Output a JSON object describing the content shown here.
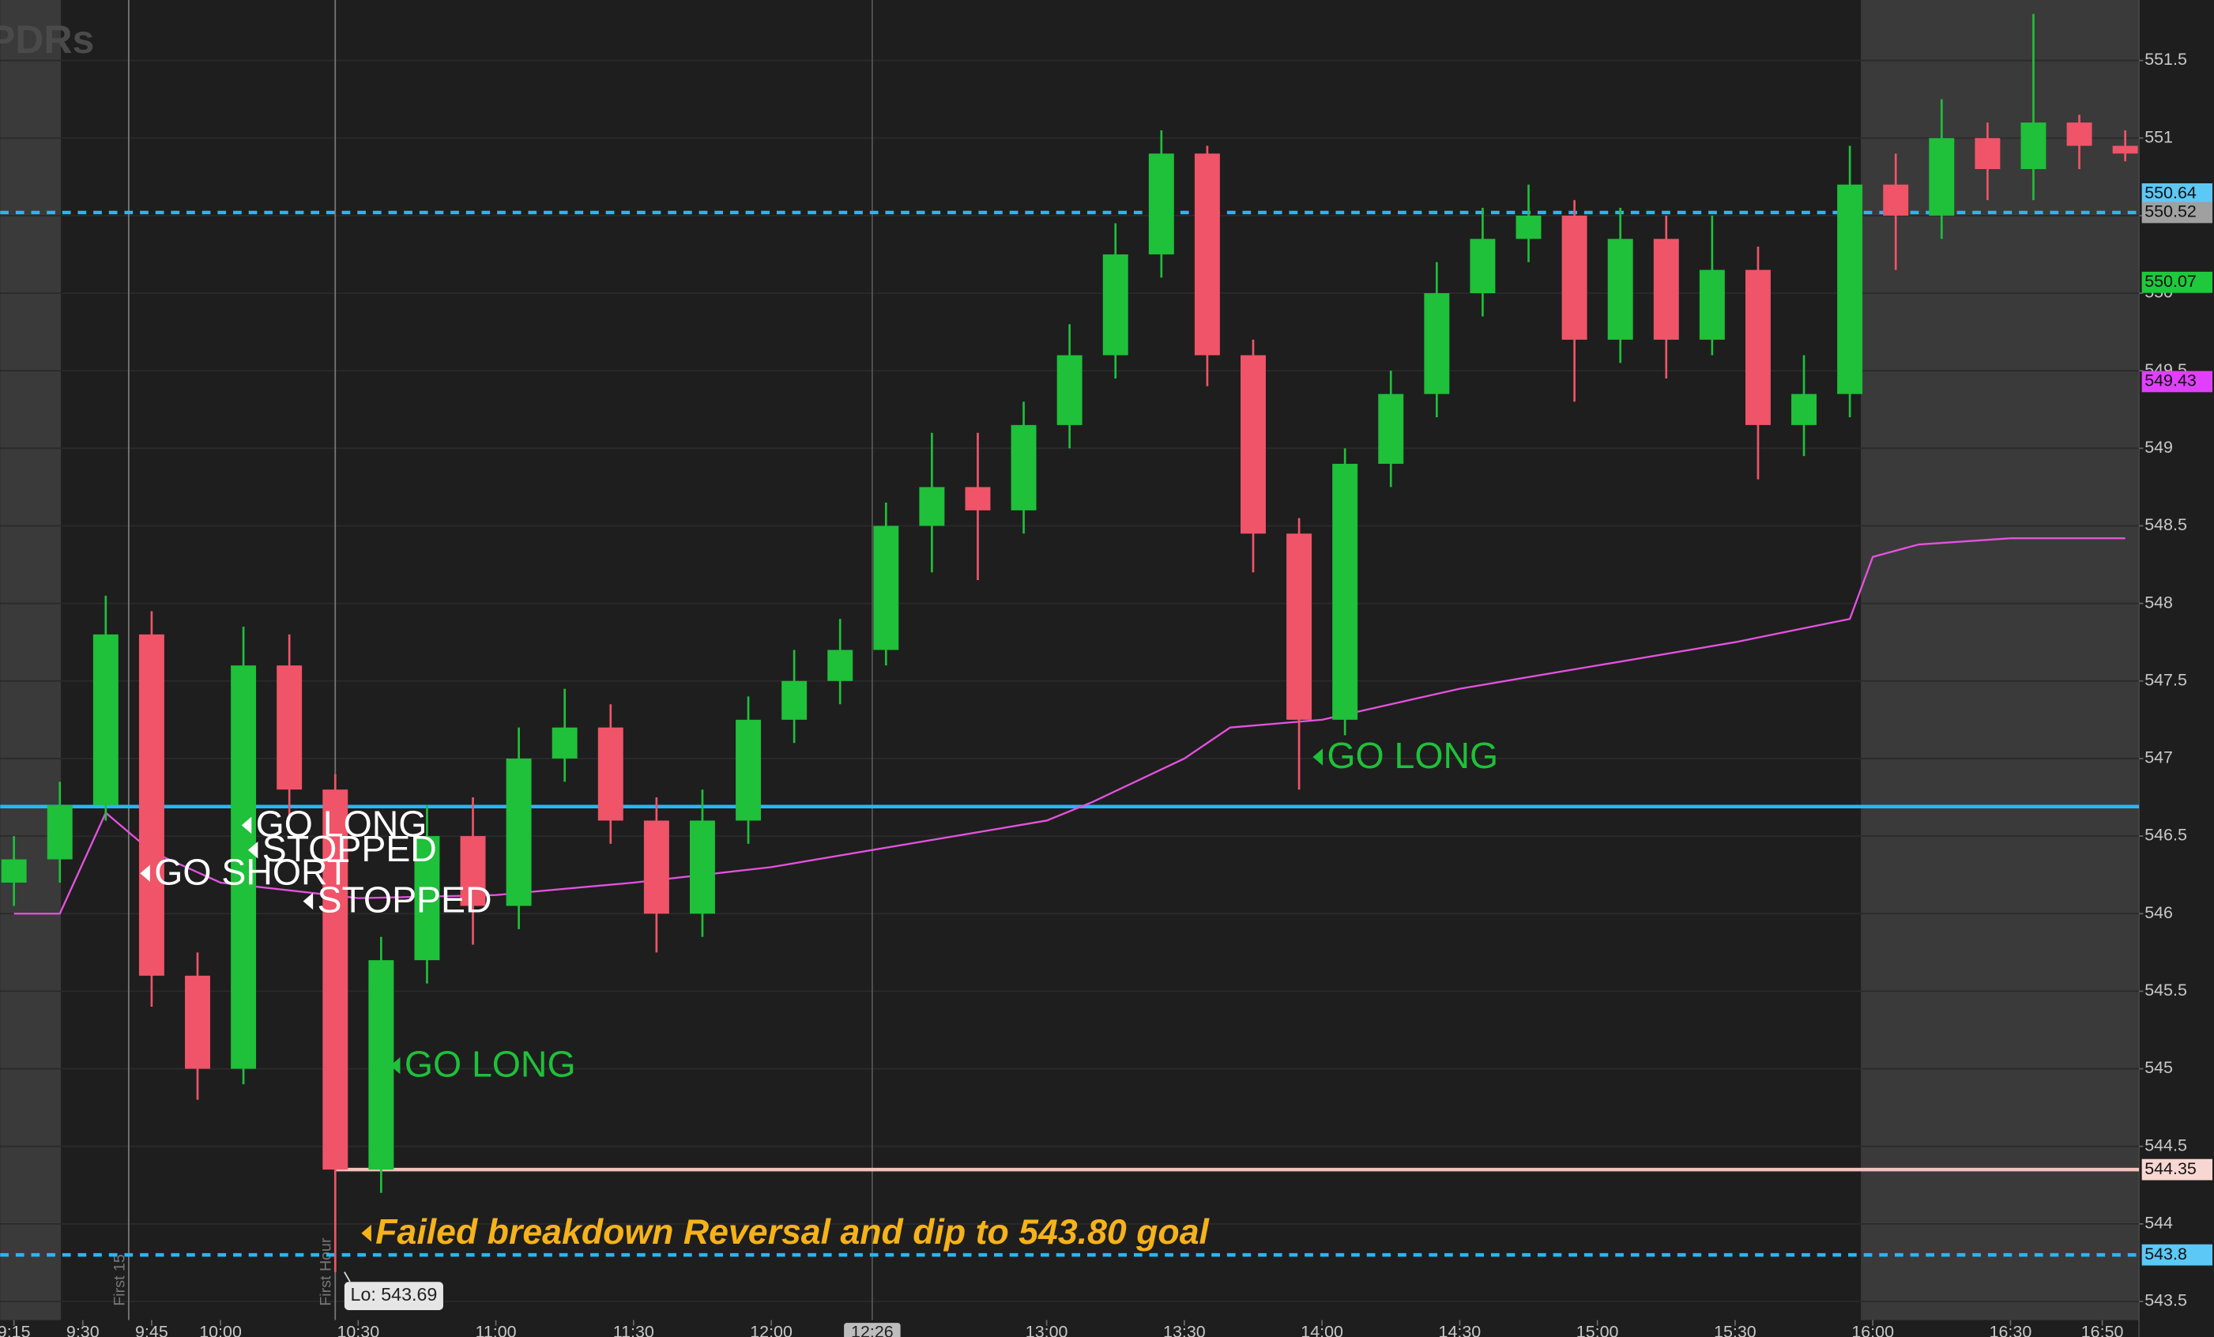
{
  "chart_data": {
    "type": "candlestick",
    "watermark": "PDRs",
    "xlim": [
      552,
      1018
    ],
    "ylim": [
      543.38,
      551.89
    ],
    "xticks": [
      {
        "value": 555,
        "label": "9:15"
      },
      {
        "value": 570,
        "label": "9:30"
      },
      {
        "value": 585,
        "label": "9:45"
      },
      {
        "value": 600,
        "label": "10:00"
      },
      {
        "value": 630,
        "label": "10:30"
      },
      {
        "value": 660,
        "label": "11:00"
      },
      {
        "value": 690,
        "label": "11:30"
      },
      {
        "value": 720,
        "label": "12:00"
      },
      {
        "value": 780,
        "label": "13:00"
      },
      {
        "value": 810,
        "label": "13:30"
      },
      {
        "value": 840,
        "label": "14:00"
      },
      {
        "value": 870,
        "label": "14:30"
      },
      {
        "value": 900,
        "label": "15:00"
      },
      {
        "value": 930,
        "label": "15:30"
      },
      {
        "value": 960,
        "label": "16:00"
      },
      {
        "value": 990,
        "label": "16:30"
      },
      {
        "value": 1010,
        "label": "16:50"
      }
    ],
    "yticks": [
      543.5,
      544,
      544.5,
      545,
      545.5,
      546,
      546.5,
      547,
      547.5,
      548,
      548.5,
      549,
      549.5,
      550,
      550.5,
      551,
      551.5
    ],
    "grid": true,
    "up_color": "#1fc03a",
    "down_color": "#f05468",
    "x": [
      555,
      565,
      575,
      585,
      595,
      605,
      615,
      625,
      635,
      645,
      655,
      665,
      675,
      685,
      695,
      705,
      715,
      725,
      735,
      745,
      755,
      765,
      775,
      785,
      795,
      805,
      815,
      825,
      835,
      845,
      855,
      865,
      875,
      885,
      895,
      905,
      915,
      925,
      935,
      945,
      955,
      965,
      975,
      985,
      995,
      1005,
      1015
    ],
    "open": [
      546.2,
      546.35,
      546.7,
      547.8,
      545.6,
      545.0,
      547.6,
      546.8,
      544.35,
      545.7,
      546.5,
      546.05,
      547.0,
      547.2,
      546.6,
      546.0,
      546.6,
      547.25,
      547.5,
      547.7,
      548.5,
      548.75,
      548.6,
      549.15,
      549.6,
      550.25,
      550.9,
      549.6,
      548.45,
      547.25,
      548.9,
      549.35,
      550.0,
      550.35,
      550.5,
      549.7,
      550.35,
      549.7,
      550.15,
      549.15,
      549.35,
      550.7,
      550.5,
      551.0,
      550.8,
      551.1,
      550.95
    ],
    "high": [
      546.5,
      546.85,
      548.05,
      547.95,
      545.75,
      547.85,
      547.8,
      546.9,
      545.85,
      546.7,
      546.75,
      547.2,
      547.45,
      547.35,
      546.75,
      546.8,
      547.4,
      547.7,
      547.9,
      548.65,
      549.1,
      549.1,
      549.3,
      549.8,
      550.45,
      551.05,
      550.95,
      549.7,
      548.55,
      549.0,
      549.5,
      550.2,
      550.55,
      550.7,
      550.6,
      550.55,
      550.5,
      550.5,
      550.3,
      549.6,
      550.95,
      550.9,
      551.25,
      551.1,
      551.8,
      551.15,
      551.05
    ],
    "low": [
      546.05,
      546.2,
      546.6,
      545.4,
      544.8,
      544.9,
      546.6,
      543.69,
      544.2,
      545.55,
      545.8,
      545.9,
      546.85,
      546.45,
      545.75,
      545.85,
      546.45,
      547.1,
      547.35,
      547.6,
      548.2,
      548.15,
      548.45,
      549.0,
      549.45,
      550.1,
      549.4,
      548.2,
      546.8,
      547.15,
      548.75,
      549.2,
      549.85,
      550.2,
      549.3,
      549.55,
      549.45,
      549.6,
      548.8,
      548.95,
      549.2,
      550.15,
      550.35,
      550.6,
      550.6,
      550.8,
      550.85
    ],
    "close": [
      546.35,
      546.7,
      547.8,
      545.6,
      545.0,
      547.6,
      546.8,
      544.35,
      545.7,
      546.5,
      546.05,
      547.0,
      547.2,
      546.6,
      546.0,
      546.6,
      547.25,
      547.5,
      547.7,
      548.5,
      548.75,
      548.6,
      549.15,
      549.6,
      550.25,
      550.9,
      549.6,
      548.45,
      547.25,
      548.9,
      549.35,
      550.0,
      550.35,
      550.5,
      549.7,
      550.35,
      549.7,
      550.15,
      549.15,
      549.35,
      550.7,
      550.5,
      551.0,
      550.8,
      551.1,
      550.95,
      550.9
    ],
    "vwap": {
      "color": "#e552e0",
      "x": [
        555,
        565,
        575,
        585,
        600,
        630,
        660,
        690,
        720,
        750,
        780,
        790,
        810,
        820,
        840,
        870,
        900,
        930,
        955,
        960,
        970,
        990,
        1015
      ],
      "values": [
        546.0,
        546.0,
        546.65,
        546.4,
        546.2,
        546.1,
        546.12,
        546.2,
        546.3,
        546.45,
        546.6,
        546.72,
        547.0,
        547.2,
        547.25,
        547.45,
        547.6,
        547.75,
        547.9,
        548.3,
        548.38,
        548.42,
        548.42
      ]
    },
    "levels": [
      {
        "value": 550.52,
        "color": "#29b6f6",
        "style": "dashed"
      },
      {
        "value": 546.69,
        "color": "#29b6f6",
        "style": "solid"
      },
      {
        "value": 544.35,
        "color": "#f4c2bc",
        "style": "solid",
        "start": 625
      },
      {
        "value": 543.8,
        "color": "#29b6f6",
        "style": "dashed"
      }
    ],
    "price_labels": [
      {
        "value": 550.64,
        "color": "#5bc8f5"
      },
      {
        "value": 550.52,
        "color": "#a0a0a0"
      },
      {
        "value": 550.07,
        "color": "#1ec93c"
      },
      {
        "value": 549.43,
        "color": "#e040fb"
      },
      {
        "value": 544.35,
        "color": "#f8d7d3"
      },
      {
        "value": 543.8,
        "color": "#5bc8f5"
      }
    ],
    "markers": [
      {
        "x": 580,
        "label": "First 15"
      },
      {
        "x": 625,
        "label": "First Hour"
      }
    ],
    "cursor": {
      "x": 742,
      "label": "12:26"
    },
    "low_label": {
      "x": 627,
      "value": 543.69,
      "label": "Lo: 543.69"
    },
    "annotations": [
      {
        "text": "GO LONG",
        "x": 838,
        "value": 547.01,
        "color": "#1fc03a"
      },
      {
        "text": "GO LONG",
        "x": 604.6,
        "value": 546.57,
        "color": "#ffffff"
      },
      {
        "text": "STOPPED",
        "x": 606,
        "value": 546.41,
        "color": "#ffffff"
      },
      {
        "text": "GO SHORT",
        "x": 582.5,
        "value": 546.26,
        "color": "#ffffff"
      },
      {
        "text": "STOPPED",
        "x": 618,
        "value": 546.08,
        "color": "#ffffff"
      },
      {
        "text": "GO LONG",
        "x": 637,
        "value": 545.02,
        "color": "#1fc03a"
      },
      {
        "text": "Failed breakdown Reversal and dip to 543.80 goal",
        "x": 630.7,
        "value": 543.94,
        "color": "#f5b21a",
        "emphasis": true
      }
    ]
  }
}
